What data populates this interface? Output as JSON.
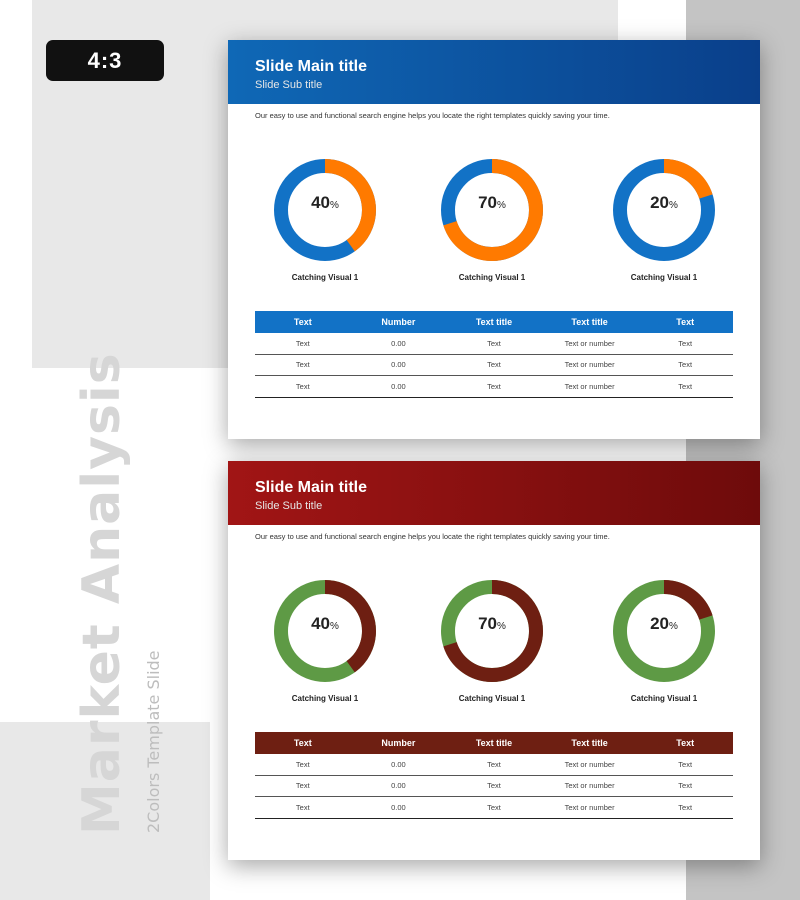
{
  "badge": "4:3",
  "side": {
    "title": "Market Analysis",
    "subtitle": "2Colors Template Slide"
  },
  "colors": {
    "blue_primary": "#1272c6",
    "blue_accent": "#ff7a00",
    "red_header": "#8b1010",
    "red_donut_primary": "#5e9a45",
    "red_donut_accent": "#6e1f12"
  },
  "slides": [
    {
      "theme": "blue",
      "title": "Slide Main title",
      "subtitle": "Slide Sub title",
      "description": "Our easy to use and functional search engine helps you locate the right templates quickly saving your time.",
      "donuts": [
        {
          "value": 40,
          "label": "Catching Visual 1",
          "pct": "%"
        },
        {
          "value": 70,
          "label": "Catching Visual 1",
          "pct": "%"
        },
        {
          "value": 20,
          "label": "Catching Visual 1",
          "pct": "%"
        }
      ],
      "table": {
        "headers": [
          "Text",
          "Number",
          "Text title",
          "Text title",
          "Text"
        ],
        "rows": [
          [
            "Text",
            "0.00",
            "Text",
            "Text or number",
            "Text"
          ],
          [
            "Text",
            "0.00",
            "Text",
            "Text or number",
            "Text"
          ],
          [
            "Text",
            "0.00",
            "Text",
            "Text or number",
            "Text"
          ]
        ]
      }
    },
    {
      "theme": "red",
      "title": "Slide Main title",
      "subtitle": "Slide Sub title",
      "description": "Our easy to use and functional search engine helps you locate the right templates quickly saving your time.",
      "donuts": [
        {
          "value": 40,
          "label": "Catching Visual 1",
          "pct": "%"
        },
        {
          "value": 70,
          "label": "Catching Visual 1",
          "pct": "%"
        },
        {
          "value": 20,
          "label": "Catching Visual 1",
          "pct": "%"
        }
      ],
      "table": {
        "headers": [
          "Text",
          "Number",
          "Text title",
          "Text title",
          "Text"
        ],
        "rows": [
          [
            "Text",
            "0.00",
            "Text",
            "Text or number",
            "Text"
          ],
          [
            "Text",
            "0.00",
            "Text",
            "Text or number",
            "Text"
          ],
          [
            "Text",
            "0.00",
            "Text",
            "Text or number",
            "Text"
          ]
        ]
      }
    }
  ]
}
